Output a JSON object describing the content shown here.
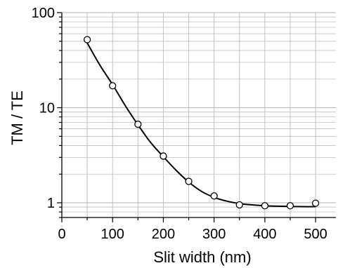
{
  "chart_data": {
    "type": "scatter",
    "title": "",
    "xlabel": "Slit width (nm)",
    "ylabel": "TM / TE",
    "xlim": [
      0,
      540
    ],
    "ylim": [
      0.7,
      100
    ],
    "yscale": "log",
    "grid": true,
    "legend": "none",
    "x_ticks": [
      {
        "value": 0,
        "label": "0"
      },
      {
        "value": 100,
        "label": "100"
      },
      {
        "value": 200,
        "label": "200"
      },
      {
        "value": 300,
        "label": "300"
      },
      {
        "value": 400,
        "label": "400"
      },
      {
        "value": 500,
        "label": "500"
      }
    ],
    "y_ticks": [
      {
        "value": 1,
        "label": "1"
      },
      {
        "value": 10,
        "label": "10"
      },
      {
        "value": 100,
        "label": "100"
      }
    ],
    "series": [
      {
        "kind": "markers",
        "marker": "open-circle",
        "x": [
          50,
          100,
          150,
          200,
          250,
          300,
          350,
          400,
          450,
          500
        ],
        "y": [
          52,
          17,
          6.7,
          3.1,
          1.68,
          1.18,
          0.95,
          0.93,
          0.93,
          0.99
        ]
      },
      {
        "kind": "line",
        "x": [
          50,
          75,
          100,
          125,
          150,
          175,
          200,
          225,
          250,
          275,
          300,
          325,
          350,
          375,
          400,
          425,
          450,
          475,
          500
        ],
        "y": [
          48,
          28,
          17.5,
          10.5,
          6.6,
          4.3,
          3.05,
          2.2,
          1.65,
          1.32,
          1.14,
          1.04,
          0.98,
          0.95,
          0.93,
          0.92,
          0.915,
          0.91,
          0.91
        ]
      }
    ],
    "colors": {
      "axis": "#000000",
      "grid": "#c0c0c0",
      "series": "#000000"
    }
  }
}
